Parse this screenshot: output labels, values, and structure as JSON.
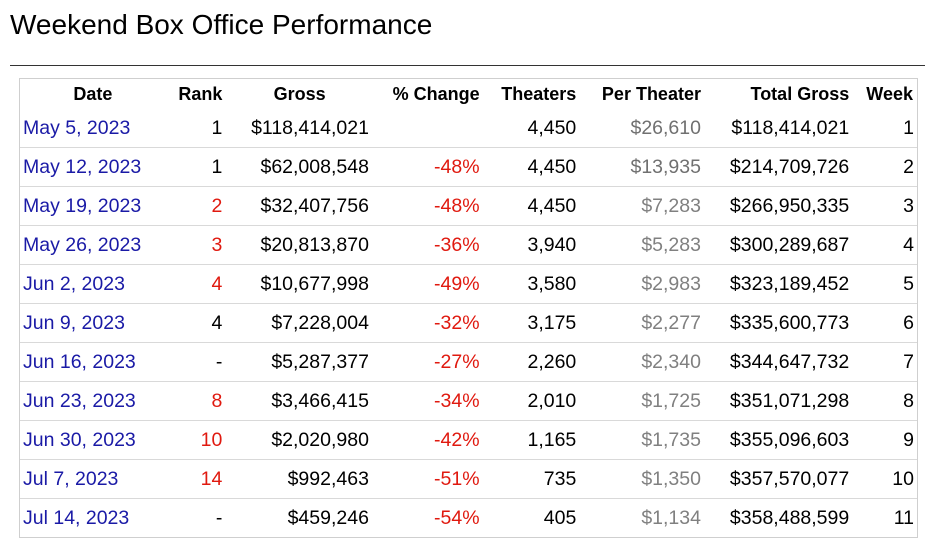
{
  "page": {
    "title": "Weekend Box Office Performance"
  },
  "table": {
    "headers": {
      "date": "Date",
      "rank": "Rank",
      "gross": "Gross",
      "change": "% Change",
      "theaters": "Theaters",
      "per_theater": "Per Theater",
      "total_gross": "Total Gross",
      "week": "Week"
    },
    "rows": [
      {
        "date": "May 5, 2023",
        "rank": "1",
        "rank_red": false,
        "gross": "$118,414,021",
        "change": "",
        "theaters": "4,450",
        "per_theater": "$26,610",
        "total_gross": "$118,414,021",
        "week": "1"
      },
      {
        "date": "May 12, 2023",
        "rank": "1",
        "rank_red": false,
        "gross": "$62,008,548",
        "change": "-48%",
        "theaters": "4,450",
        "per_theater": "$13,935",
        "total_gross": "$214,709,726",
        "week": "2"
      },
      {
        "date": "May 19, 2023",
        "rank": "2",
        "rank_red": true,
        "gross": "$32,407,756",
        "change": "-48%",
        "theaters": "4,450",
        "per_theater": "$7,283",
        "total_gross": "$266,950,335",
        "week": "3"
      },
      {
        "date": "May 26, 2023",
        "rank": "3",
        "rank_red": true,
        "gross": "$20,813,870",
        "change": "-36%",
        "theaters": "3,940",
        "per_theater": "$5,283",
        "total_gross": "$300,289,687",
        "week": "4"
      },
      {
        "date": "Jun 2, 2023",
        "rank": "4",
        "rank_red": true,
        "gross": "$10,677,998",
        "change": "-49%",
        "theaters": "3,580",
        "per_theater": "$2,983",
        "total_gross": "$323,189,452",
        "week": "5"
      },
      {
        "date": "Jun 9, 2023",
        "rank": "4",
        "rank_red": false,
        "gross": "$7,228,004",
        "change": "-32%",
        "theaters": "3,175",
        "per_theater": "$2,277",
        "total_gross": "$335,600,773",
        "week": "6"
      },
      {
        "date": "Jun 16, 2023",
        "rank": "-",
        "rank_red": false,
        "gross": "$5,287,377",
        "change": "-27%",
        "theaters": "2,260",
        "per_theater": "$2,340",
        "total_gross": "$344,647,732",
        "week": "7"
      },
      {
        "date": "Jun 23, 2023",
        "rank": "8",
        "rank_red": true,
        "gross": "$3,466,415",
        "change": "-34%",
        "theaters": "2,010",
        "per_theater": "$1,725",
        "total_gross": "$351,071,298",
        "week": "8"
      },
      {
        "date": "Jun 30, 2023",
        "rank": "10",
        "rank_red": true,
        "gross": "$2,020,980",
        "change": "-42%",
        "theaters": "1,165",
        "per_theater": "$1,735",
        "total_gross": "$355,096,603",
        "week": "9"
      },
      {
        "date": "Jul 7, 2023",
        "rank": "14",
        "rank_red": true,
        "gross": "$992,463",
        "change": "-51%",
        "theaters": "735",
        "per_theater": "$1,350",
        "total_gross": "$357,570,077",
        "week": "10"
      },
      {
        "date": "Jul 14, 2023",
        "rank": "-",
        "rank_red": false,
        "gross": "$459,246",
        "change": "-54%",
        "theaters": "405",
        "per_theater": "$1,134",
        "total_gross": "$358,488,599",
        "week": "11"
      }
    ]
  },
  "colors": {
    "date_link": "#1a1aa6",
    "change_negative": "#e0190f",
    "rank_drop": "#e0190f",
    "per_theater": "#808080"
  }
}
